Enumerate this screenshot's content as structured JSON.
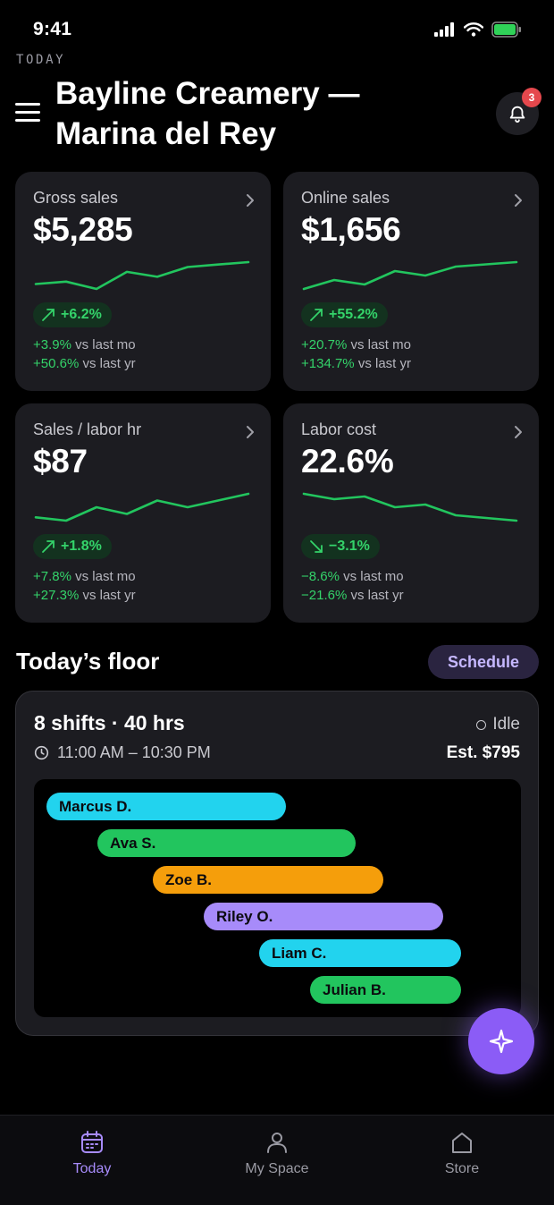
{
  "status_bar": {
    "time": "9:41"
  },
  "header": {
    "eyebrow": "TODAY",
    "title": "Bayline Creamery — Marina del Rey",
    "notification_count": "3"
  },
  "metrics": [
    {
      "title": "Gross sales",
      "value": "$5,285",
      "trend": "up",
      "change": "+6.2%",
      "vs_mo_value": "+3.9%",
      "vs_mo_label": "vs last mo",
      "vs_yr_value": "+50.6%",
      "vs_yr_label": "vs last yr",
      "spark": [
        14,
        15,
        12,
        19,
        17,
        21,
        22,
        23
      ]
    },
    {
      "title": "Online sales",
      "value": "$1,656",
      "trend": "up",
      "change": "+55.2%",
      "vs_mo_value": "+20.7%",
      "vs_mo_label": "vs last mo",
      "vs_yr_value": "+134.7%",
      "vs_yr_label": "vs last yr",
      "spark": [
        12,
        16,
        14,
        20,
        18,
        22,
        23,
        24
      ]
    },
    {
      "title": "Sales / labor hr",
      "value": "$87",
      "trend": "up",
      "change": "+1.8%",
      "vs_mo_value": "+7.8%",
      "vs_mo_label": "vs last mo",
      "vs_yr_value": "+27.3%",
      "vs_yr_label": "vs last yr",
      "spark": [
        14,
        13,
        17,
        15,
        19,
        17,
        19,
        21
      ]
    },
    {
      "title": "Labor cost",
      "value": "22.6%",
      "trend": "down",
      "change": "−3.1%",
      "vs_mo_value": "−8.6%",
      "vs_mo_label": "vs last mo",
      "vs_yr_value": "−21.6%",
      "vs_yr_label": "vs last yr",
      "spark": [
        23,
        21,
        22,
        18,
        19,
        15,
        14,
        13
      ]
    }
  ],
  "floor": {
    "section_title": "Today’s floor",
    "schedule_label": "Schedule",
    "summary": "8 shifts · 40 hrs",
    "hours": "11:00 AM – 10:30 PM",
    "status": "Idle",
    "estimate": "Est. $795",
    "shifts": [
      {
        "name": "Marcus D.",
        "color": "#22d3ee"
      },
      {
        "name": "Ava S.",
        "color": "#22c55e"
      },
      {
        "name": "Zoe B.",
        "color": "#f59e0b"
      },
      {
        "name": "Riley O.",
        "color": "#a78bfa"
      },
      {
        "name": "Liam C.",
        "color": "#22d3ee"
      },
      {
        "name": "Julian B.",
        "color": "#22c55e"
      }
    ]
  },
  "tabs": [
    {
      "label": "Today",
      "icon": "calendar-icon",
      "active": true
    },
    {
      "label": "My Space",
      "icon": "person-icon",
      "active": false
    },
    {
      "label": "Store",
      "icon": "home-icon",
      "active": false
    }
  ],
  "colors": {
    "accent": "#8b5cf6",
    "positive": "#34d36a",
    "card": "#1c1c21"
  }
}
